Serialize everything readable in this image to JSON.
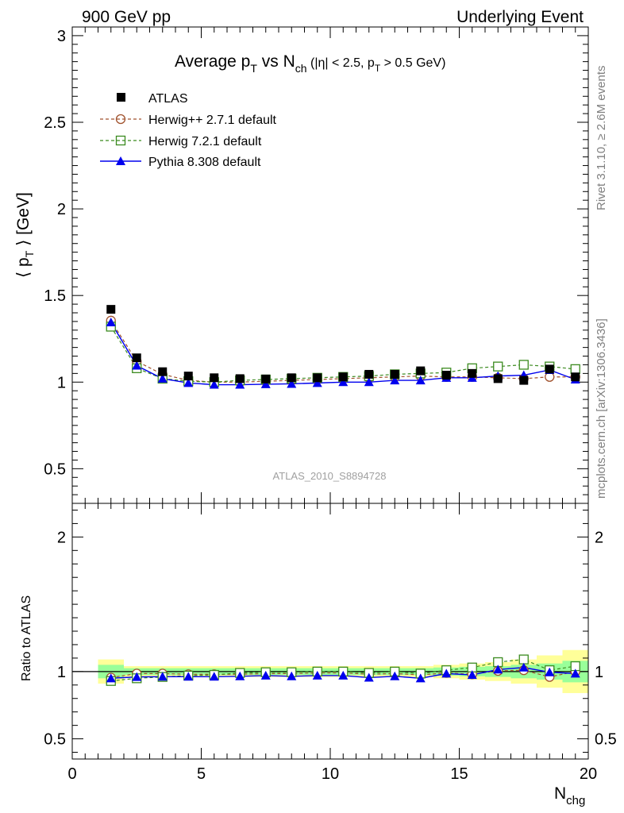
{
  "header": {
    "left": "900 GeV pp",
    "right": "Underlying Event"
  },
  "side_text": {
    "rivet": "Rivet 3.1.10, ≥ 2.6M events",
    "mcplots": "mcplots.cern.ch [arXiv:1306.3436]"
  },
  "watermark": "ATLAS_2010_S8894728",
  "title": {
    "main": "Average p",
    "sub_t": "T",
    "vs": " vs N",
    "sub_ch": "ch",
    "cuts_a": " (|η| < 2.5, p",
    "cuts_sub": "T",
    "cuts_b": " > 0.5 GeV)"
  },
  "ylabel_top": {
    "pre": "⟨ p",
    "sub": "T",
    "post": " ⟩ [GeV]"
  },
  "ylabel_bottom": "Ratio to ATLAS",
  "xlabel": {
    "main": "N",
    "sub": "chg"
  },
  "colors": {
    "atlas": "#000000",
    "herwigpp": "#a0522d",
    "herwig7": "#3a8a1e",
    "pythia": "#0000ee",
    "band_yellow": "#ffff99",
    "band_green": "#99ff99"
  },
  "chart_data": [
    {
      "type": "line",
      "panel": "main",
      "xlim": [
        0,
        20
      ],
      "ylim": [
        0.3,
        3.05
      ],
      "yticks": [
        "0.5",
        "1",
        "1.5",
        "2",
        "2.5",
        "3"
      ],
      "ytick_values": [
        0.5,
        1,
        1.5,
        2,
        2.5,
        3
      ],
      "x": [
        1.5,
        2.5,
        3.5,
        4.5,
        5.5,
        6.5,
        7.5,
        8.5,
        9.5,
        10.5,
        11.5,
        12.5,
        13.5,
        14.5,
        15.5,
        16.5,
        17.5,
        18.5,
        19.5
      ],
      "series": [
        {
          "name": "ATLAS",
          "key": "atlas",
          "values": [
            1.42,
            1.14,
            1.06,
            1.035,
            1.025,
            1.02,
            1.018,
            1.025,
            1.025,
            1.03,
            1.045,
            1.045,
            1.065,
            1.04,
            1.05,
            1.02,
            1.01,
            1.075,
            1.03
          ]
        },
        {
          "name": "Herwig++ 2.7.1 default",
          "key": "herwigpp",
          "values": [
            1.355,
            1.12,
            1.045,
            1.01,
            1.0,
            1.0,
            1.005,
            1.01,
            1.015,
            1.02,
            1.025,
            1.03,
            1.035,
            1.03,
            1.03,
            1.025,
            1.02,
            1.03,
            1.03
          ]
        },
        {
          "name": "Herwig 7.2.1 default",
          "key": "herwig7",
          "values": [
            1.32,
            1.08,
            1.02,
            1.005,
            1.0,
            1.01,
            1.015,
            1.02,
            1.025,
            1.03,
            1.035,
            1.045,
            1.05,
            1.055,
            1.08,
            1.09,
            1.1,
            1.09,
            1.075
          ]
        },
        {
          "name": "Pythia 8.308 default",
          "key": "pythia",
          "values": [
            1.345,
            1.095,
            1.02,
            0.995,
            0.985,
            0.985,
            0.988,
            0.99,
            0.995,
            1.0,
            1.0,
            1.01,
            1.01,
            1.025,
            1.025,
            1.035,
            1.04,
            1.07,
            1.015
          ]
        }
      ]
    },
    {
      "type": "line",
      "panel": "ratio",
      "xlim": [
        0,
        20
      ],
      "ylim": [
        0.35,
        2.25
      ],
      "yticks": [
        "0.5",
        "1",
        "2"
      ],
      "ytick_values": [
        0.5,
        1,
        2
      ],
      "xticks": [
        "0",
        "5",
        "10",
        "15",
        "20"
      ],
      "xtick_values": [
        0,
        5,
        10,
        15,
        20
      ],
      "x": [
        1.5,
        2.5,
        3.5,
        4.5,
        5.5,
        6.5,
        7.5,
        8.5,
        9.5,
        10.5,
        11.5,
        12.5,
        13.5,
        14.5,
        15.5,
        16.5,
        17.5,
        18.5,
        19.5
      ],
      "band_yellow": [
        0.09,
        0.04,
        0.04,
        0.04,
        0.04,
        0.04,
        0.04,
        0.04,
        0.04,
        0.04,
        0.04,
        0.04,
        0.04,
        0.05,
        0.06,
        0.07,
        0.09,
        0.12,
        0.16
      ],
      "band_green": [
        0.05,
        0.025,
        0.025,
        0.025,
        0.025,
        0.025,
        0.025,
        0.025,
        0.025,
        0.025,
        0.025,
        0.025,
        0.025,
        0.03,
        0.035,
        0.04,
        0.05,
        0.06,
        0.08
      ],
      "series": [
        {
          "name": "Herwig++ 2.7.1 default",
          "key": "herwigpp",
          "values": [
            0.955,
            0.985,
            0.985,
            0.98,
            0.98,
            0.98,
            0.985,
            0.985,
            0.99,
            0.99,
            0.98,
            0.985,
            0.975,
            0.99,
            0.98,
            1.005,
            1.01,
            0.96,
            1.0
          ]
        },
        {
          "name": "Herwig 7.2.1 default",
          "key": "herwig7",
          "values": [
            0.93,
            0.95,
            0.96,
            0.97,
            0.975,
            0.99,
            0.995,
            0.995,
            1.0,
            1.0,
            0.99,
            1.0,
            0.985,
            1.01,
            1.03,
            1.07,
            1.09,
            1.01,
            1.04
          ]
        },
        {
          "name": "Pythia 8.308 default",
          "key": "pythia",
          "values": [
            0.95,
            0.96,
            0.962,
            0.962,
            0.962,
            0.965,
            0.97,
            0.965,
            0.97,
            0.97,
            0.955,
            0.965,
            0.95,
            0.985,
            0.975,
            1.015,
            1.03,
            0.995,
            0.985
          ]
        }
      ]
    }
  ]
}
